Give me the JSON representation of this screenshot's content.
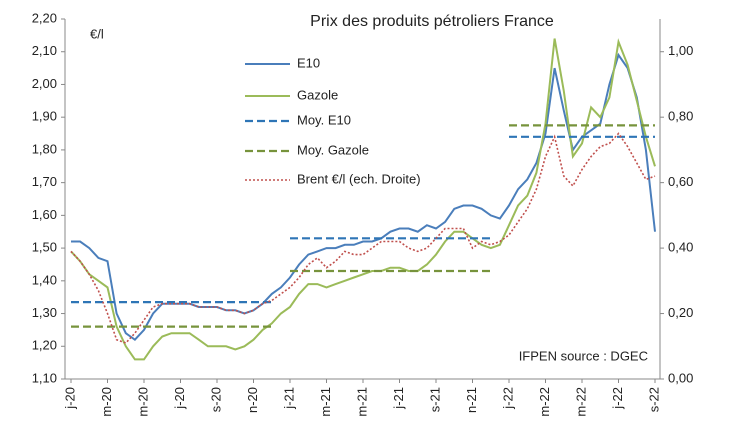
{
  "chart_data": {
    "type": "line",
    "title": "Prix des produits pétroliers France",
    "y_label": "€/l",
    "annotation": "IFPEN source : DGEC",
    "categories": [
      "j-20",
      null,
      null,
      null,
      "m-20",
      null,
      null,
      null,
      "m-20",
      null,
      null,
      null,
      "j-20",
      null,
      null,
      null,
      "s-20",
      null,
      null,
      null,
      "n-20",
      null,
      null,
      null,
      "j-21",
      null,
      null,
      null,
      "m-21",
      null,
      null,
      null,
      "m-21",
      null,
      null,
      null,
      "j-21",
      null,
      null,
      null,
      "s-21",
      null,
      null,
      null,
      "n-21",
      null,
      null,
      null,
      "j-22",
      null,
      null,
      null,
      "m-22",
      null,
      null,
      null,
      "m-22",
      null,
      null,
      null,
      "j-22",
      null,
      null,
      null,
      "s-22"
    ],
    "ylim": [
      1.1,
      2.2
    ],
    "yticks": [
      {
        "value": 1.1,
        "label": "1,10"
      },
      {
        "value": 1.2,
        "label": "1,20"
      },
      {
        "value": 1.3,
        "label": "1,30"
      },
      {
        "value": 1.4,
        "label": "1,40"
      },
      {
        "value": 1.5,
        "label": "1,50"
      },
      {
        "value": 1.6,
        "label": "1,60"
      },
      {
        "value": 1.7,
        "label": "1,70"
      },
      {
        "value": 1.8,
        "label": "1,80"
      },
      {
        "value": 1.9,
        "label": "1,90"
      },
      {
        "value": 2.0,
        "label": "2,00"
      },
      {
        "value": 2.1,
        "label": "2,10"
      },
      {
        "value": 2.2,
        "label": "2,20"
      }
    ],
    "y2lim": [
      0,
      1.1
    ],
    "y2ticks": [
      {
        "value": 0,
        "label": "0,00"
      },
      {
        "value": 0.2,
        "label": "0,20"
      },
      {
        "value": 0.4,
        "label": "0,40"
      },
      {
        "value": 0.6,
        "label": "0,60"
      },
      {
        "value": 0.8,
        "label": "0,80"
      },
      {
        "value": 1.0,
        "label": "1,00"
      }
    ],
    "grid": false,
    "legend": "top",
    "series": [
      {
        "name": "E10",
        "color": "#4a7ebb",
        "style": "solid",
        "values": [
          1.52,
          1.52,
          1.5,
          1.47,
          1.46,
          1.3,
          1.24,
          1.22,
          1.25,
          1.3,
          1.33,
          1.33,
          1.33,
          1.33,
          1.32,
          1.32,
          1.32,
          1.31,
          1.31,
          1.3,
          1.31,
          1.33,
          1.36,
          1.38,
          1.41,
          1.45,
          1.48,
          1.49,
          1.5,
          1.5,
          1.51,
          1.51,
          1.52,
          1.52,
          1.53,
          1.55,
          1.56,
          1.56,
          1.55,
          1.57,
          1.56,
          1.58,
          1.62,
          1.63,
          1.63,
          1.62,
          1.6,
          1.59,
          1.63,
          1.68,
          1.71,
          1.76,
          1.85,
          2.05,
          1.92,
          1.8,
          1.84,
          1.86,
          1.88,
          2.0,
          2.09,
          2.05,
          1.96,
          1.8,
          1.55
        ]
      },
      {
        "name": "Gazole",
        "color": "#9bbb59",
        "style": "solid",
        "values": [
          1.49,
          1.46,
          1.42,
          1.4,
          1.38,
          1.26,
          1.2,
          1.16,
          1.16,
          1.2,
          1.23,
          1.24,
          1.24,
          1.24,
          1.22,
          1.2,
          1.2,
          1.2,
          1.19,
          1.2,
          1.22,
          1.25,
          1.27,
          1.3,
          1.32,
          1.36,
          1.39,
          1.39,
          1.38,
          1.39,
          1.4,
          1.41,
          1.42,
          1.43,
          1.43,
          1.44,
          1.44,
          1.43,
          1.43,
          1.45,
          1.48,
          1.52,
          1.55,
          1.55,
          1.53,
          1.51,
          1.5,
          1.51,
          1.57,
          1.63,
          1.66,
          1.73,
          1.88,
          2.14,
          1.98,
          1.78,
          1.82,
          1.93,
          1.9,
          1.96,
          2.13,
          2.06,
          1.95,
          1.84,
          1.75
        ]
      },
      {
        "name": "Moy. E10",
        "color": "#2e75b6",
        "style": "dashed",
        "values": [
          1.335,
          1.335,
          1.335,
          1.335,
          1.335,
          1.335,
          1.335,
          1.335,
          1.335,
          1.335,
          1.335,
          1.335,
          1.335,
          1.335,
          1.335,
          1.335,
          1.335,
          1.335,
          1.335,
          1.335,
          1.335,
          1.335,
          1.335,
          null,
          1.53,
          1.53,
          1.53,
          1.53,
          1.53,
          1.53,
          1.53,
          1.53,
          1.53,
          1.53,
          1.53,
          1.53,
          1.53,
          1.53,
          1.53,
          1.53,
          1.53,
          1.53,
          1.53,
          1.53,
          1.53,
          1.53,
          1.53,
          null,
          1.84,
          1.84,
          1.84,
          1.84,
          1.84,
          1.84,
          1.84,
          1.84,
          1.84,
          1.84,
          1.84,
          1.84,
          1.84,
          1.84,
          1.84,
          1.84,
          1.84
        ]
      },
      {
        "name": "Moy. Gazole",
        "color": "#77933c",
        "style": "dashed",
        "values": [
          1.26,
          1.26,
          1.26,
          1.26,
          1.26,
          1.26,
          1.26,
          1.26,
          1.26,
          1.26,
          1.26,
          1.26,
          1.26,
          1.26,
          1.26,
          1.26,
          1.26,
          1.26,
          1.26,
          1.26,
          1.26,
          1.26,
          1.26,
          null,
          1.43,
          1.43,
          1.43,
          1.43,
          1.43,
          1.43,
          1.43,
          1.43,
          1.43,
          1.43,
          1.43,
          1.43,
          1.43,
          1.43,
          1.43,
          1.43,
          1.43,
          1.43,
          1.43,
          1.43,
          1.43,
          1.43,
          1.43,
          null,
          1.875,
          1.875,
          1.875,
          1.875,
          1.875,
          1.875,
          1.875,
          1.875,
          1.875,
          1.875,
          1.875,
          1.875,
          1.875,
          1.875,
          1.875,
          1.875,
          1.875
        ]
      },
      {
        "name": "Brent €/l (ech. Droite)",
        "color": "#c0504d",
        "style": "dotted",
        "axis": "y2",
        "values": [
          0.39,
          0.36,
          0.32,
          0.27,
          0.2,
          0.12,
          0.11,
          0.14,
          0.18,
          0.22,
          0.23,
          0.23,
          0.23,
          0.23,
          0.22,
          0.22,
          0.22,
          0.21,
          0.21,
          0.2,
          0.21,
          0.23,
          0.24,
          0.26,
          0.28,
          0.31,
          0.35,
          0.37,
          0.34,
          0.36,
          0.39,
          0.38,
          0.38,
          0.4,
          0.42,
          0.42,
          0.42,
          0.4,
          0.39,
          0.4,
          0.43,
          0.46,
          0.46,
          0.46,
          0.4,
          0.42,
          0.41,
          0.42,
          0.44,
          0.48,
          0.52,
          0.58,
          0.68,
          0.74,
          0.62,
          0.59,
          0.64,
          0.68,
          0.71,
          0.72,
          0.75,
          0.71,
          0.66,
          0.61,
          0.62
        ]
      }
    ]
  }
}
